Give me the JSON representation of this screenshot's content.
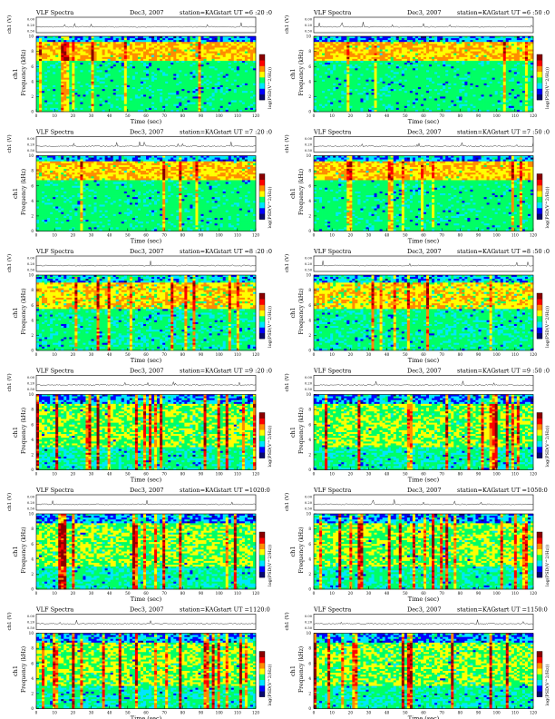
{
  "page": {
    "panels": [
      {
        "title": "VLF Spectra",
        "date": "Dec3, 2007",
        "station": "station=KAG",
        "start": "start  UT  =6 :20 :0",
        "style": "high"
      },
      {
        "title": "VLF Spectra",
        "date": "Dec3, 2007",
        "station": "station=KAG",
        "start": "start  UT  =6 :50 :0",
        "style": "high"
      },
      {
        "title": "VLF Spectra",
        "date": "Dec3, 2007",
        "station": "station=KAG",
        "start": "start  UT  =7 :20 :0",
        "style": "high"
      },
      {
        "title": "VLF Spectra",
        "date": "Dec3, 2007",
        "station": "station=KAG",
        "start": "start  UT  =7 :50 :0",
        "style": "high"
      },
      {
        "title": "VLF Spectra",
        "date": "Dec3, 2007",
        "station": "station=KAG",
        "start": "start  UT  =8 :20 :0",
        "style": "mid"
      },
      {
        "title": "VLF Spectra",
        "date": "Dec3, 2007",
        "station": "station=KAG",
        "start": "start  UT  =8 :50 :0",
        "style": "mid"
      },
      {
        "title": "VLF Spectra",
        "date": "Dec3, 2007",
        "station": "station=KAG",
        "start": "start  UT  =9 :20 :0",
        "style": "spiky"
      },
      {
        "title": "VLF Spectra",
        "date": "Dec3, 2007",
        "station": "station=KAG",
        "start": "start  UT  =9 :50 :0",
        "style": "spiky"
      },
      {
        "title": "VLF Spectra",
        "date": "Dec3, 2007",
        "station": "station=KAG",
        "start": "start  UT  =1020:0",
        "style": "spiky"
      },
      {
        "title": "VLF Spectra",
        "date": "Dec3, 2007",
        "station": "station=KAG",
        "start": "start  UT  =1050:0",
        "style": "spiky"
      },
      {
        "title": "VLF Spectra",
        "date": "Dec3, 2007",
        "station": "station=KAG",
        "start": "start  UT  =1120:0",
        "style": "spiky"
      },
      {
        "title": "VLF Spectra",
        "date": "Dec3, 2007",
        "station": "station=KAG",
        "start": "start  UT  =1150:0",
        "style": "spiky"
      }
    ],
    "ch_label": "ch1 (V)",
    "freq_label": "Frequency  (kHz)",
    "ch1_tag": "ch1",
    "colorbar_label": "log(PSD(V^2/Hz))",
    "time_label": "Time  (sec)"
  },
  "chart_data": {
    "type": "heatmap",
    "description_free": true,
    "x_axis": {
      "label": "Time  (sec)",
      "range": [
        0,
        120
      ],
      "ticks": [
        "0",
        "10",
        "20",
        "30",
        "40",
        "50",
        "60",
        "70",
        "80",
        "90",
        "100",
        "110",
        "120"
      ]
    },
    "y_axis": {
      "label": "Frequency  (kHz)",
      "range": [
        0,
        10
      ],
      "ticks": [
        "0",
        "2",
        "4",
        "6",
        "8",
        "10"
      ]
    },
    "ch1_axis": {
      "label": "ch1 (V)",
      "ticks": [
        "0.00",
        "0.20",
        "0.50"
      ]
    },
    "colorbar": {
      "label": "log(PSD(V^2/Hz))",
      "colors": [
        "#08086e",
        "#0000ff",
        "#00e6ff",
        "#00ff64",
        "#ffff00",
        "#ff8c00",
        "#ff0000",
        "#8b0000"
      ]
    }
  }
}
